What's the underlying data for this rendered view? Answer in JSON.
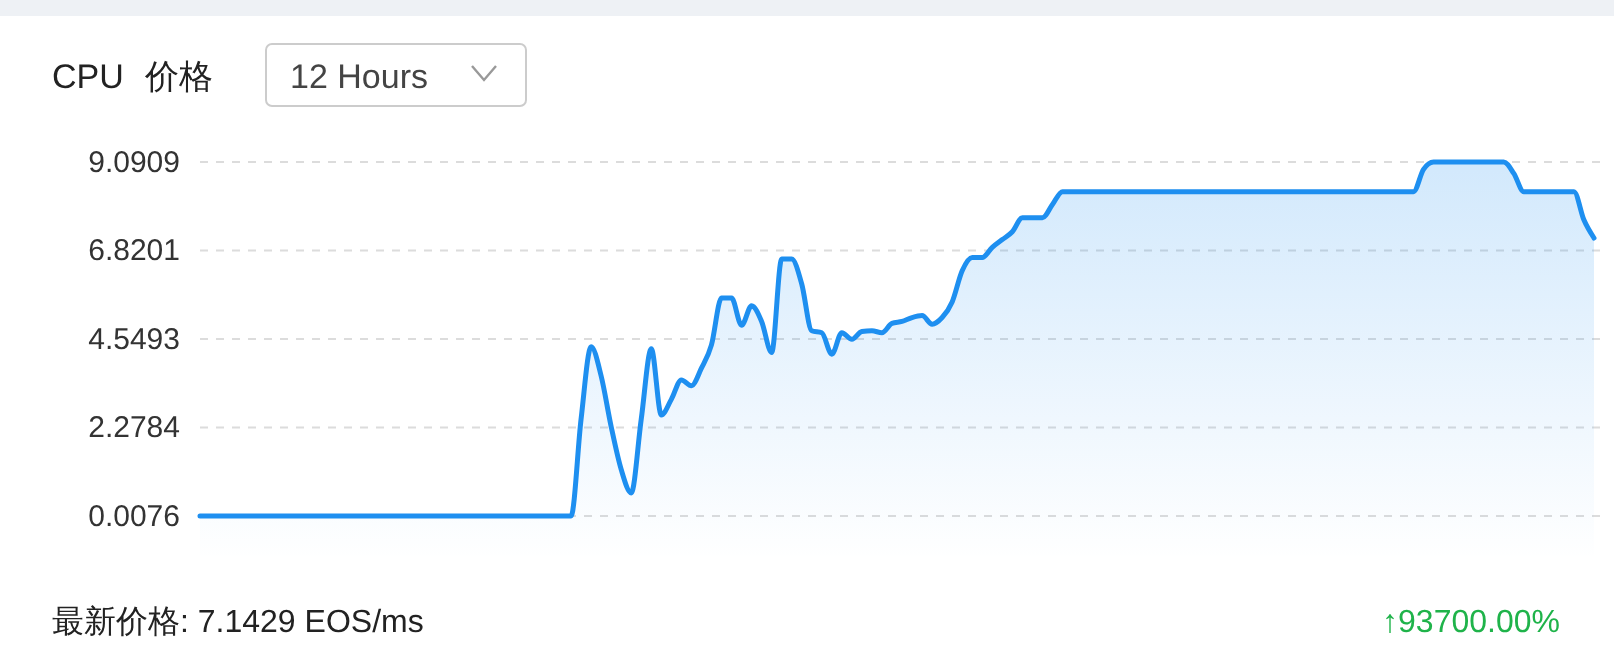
{
  "chart_data": {
    "type": "area",
    "title": "CPU 价格",
    "subtitle": "12 Hours",
    "categories": [
      null,
      null,
      null,
      null,
      null,
      null,
      null,
      null,
      null,
      null,
      null,
      null,
      null,
      null,
      null,
      null,
      null,
      null,
      null,
      null,
      null,
      null,
      null,
      null,
      null,
      null,
      null,
      null,
      null,
      null,
      null,
      null,
      null,
      null,
      null,
      null,
      null,
      null,
      null,
      null,
      null,
      null,
      null,
      null,
      null,
      null,
      null,
      null,
      null,
      null,
      null,
      null,
      null,
      null,
      null,
      null,
      null,
      null,
      null,
      null,
      null,
      null,
      null,
      null,
      null,
      null,
      null,
      null,
      null,
      null,
      null,
      null,
      null,
      null,
      null,
      null,
      null,
      null,
      null,
      null,
      null,
      null,
      null,
      null,
      null,
      null,
      null,
      null,
      null,
      null,
      null,
      null,
      null,
      null,
      null,
      null,
      null,
      null,
      null,
      null,
      null,
      null,
      null,
      null,
      null,
      null,
      null,
      null,
      null,
      null,
      null,
      null,
      null,
      null,
      null,
      null,
      null,
      null,
      null,
      null,
      null,
      null,
      null,
      null,
      null,
      null,
      null,
      null,
      null,
      null,
      null,
      null,
      null,
      null,
      null,
      null,
      null,
      null,
      null,
      null
    ],
    "series": [
      {
        "color": "#1e8ff0",
        "values": [
          0.0076,
          0.0076,
          0.0076,
          0.0076,
          0.0076,
          0.0076,
          0.0076,
          0.0076,
          0.0076,
          0.0076,
          0.0076,
          0.0076,
          0.0076,
          0.0076,
          0.0076,
          0.0076,
          0.0076,
          0.0076,
          0.0076,
          0.0076,
          0.0076,
          0.0076,
          0.0076,
          0.0076,
          0.0076,
          0.0076,
          0.0076,
          0.0076,
          0.0076,
          0.0076,
          0.0076,
          0.0076,
          0.0076,
          0.0076,
          0.0076,
          0.0076,
          0.0076,
          0.0076,
          2.5,
          4.35,
          3.6,
          2.3,
          1.2,
          0.6,
          2.5,
          4.3,
          2.6,
          3.0,
          3.5,
          3.35,
          3.8,
          4.4,
          5.6,
          5.6,
          4.9,
          5.4,
          5.0,
          4.2,
          6.6,
          6.6,
          5.96,
          4.76,
          4.71,
          4.16,
          4.71,
          4.54,
          4.74,
          4.76,
          4.71,
          4.95,
          5.0,
          5.1,
          5.15,
          4.93,
          5.1,
          5.5,
          6.3,
          6.64,
          6.64,
          6.9,
          7.1,
          7.3,
          7.66,
          7.66,
          7.66,
          8.0,
          8.33,
          8.33,
          8.33,
          8.33,
          8.33,
          8.33,
          8.33,
          8.33,
          8.33,
          8.33,
          8.33,
          8.33,
          8.33,
          8.33,
          8.33,
          8.33,
          8.33,
          8.33,
          8.33,
          8.33,
          8.33,
          8.33,
          8.33,
          8.33,
          8.33,
          8.33,
          8.33,
          8.33,
          8.33,
          8.33,
          8.33,
          8.33,
          8.33,
          8.33,
          8.33,
          8.33,
          8.9,
          9.09,
          9.09,
          9.09,
          9.09,
          9.09,
          9.09,
          9.09,
          9.09,
          8.8,
          8.33,
          8.33,
          8.33,
          8.33,
          8.33,
          8.33,
          7.6,
          7.14
        ]
      }
    ],
    "ylim": [
      0.0076,
      9.0909
    ],
    "yticks": [
      0.0076,
      2.2784,
      4.5493,
      6.8201,
      9.0909
    ],
    "grid": "y",
    "tick_labels": "y",
    "annotations": [
      "最新价格: 7.1429 EOS/ms",
      "↑93700.00%"
    ]
  }
}
